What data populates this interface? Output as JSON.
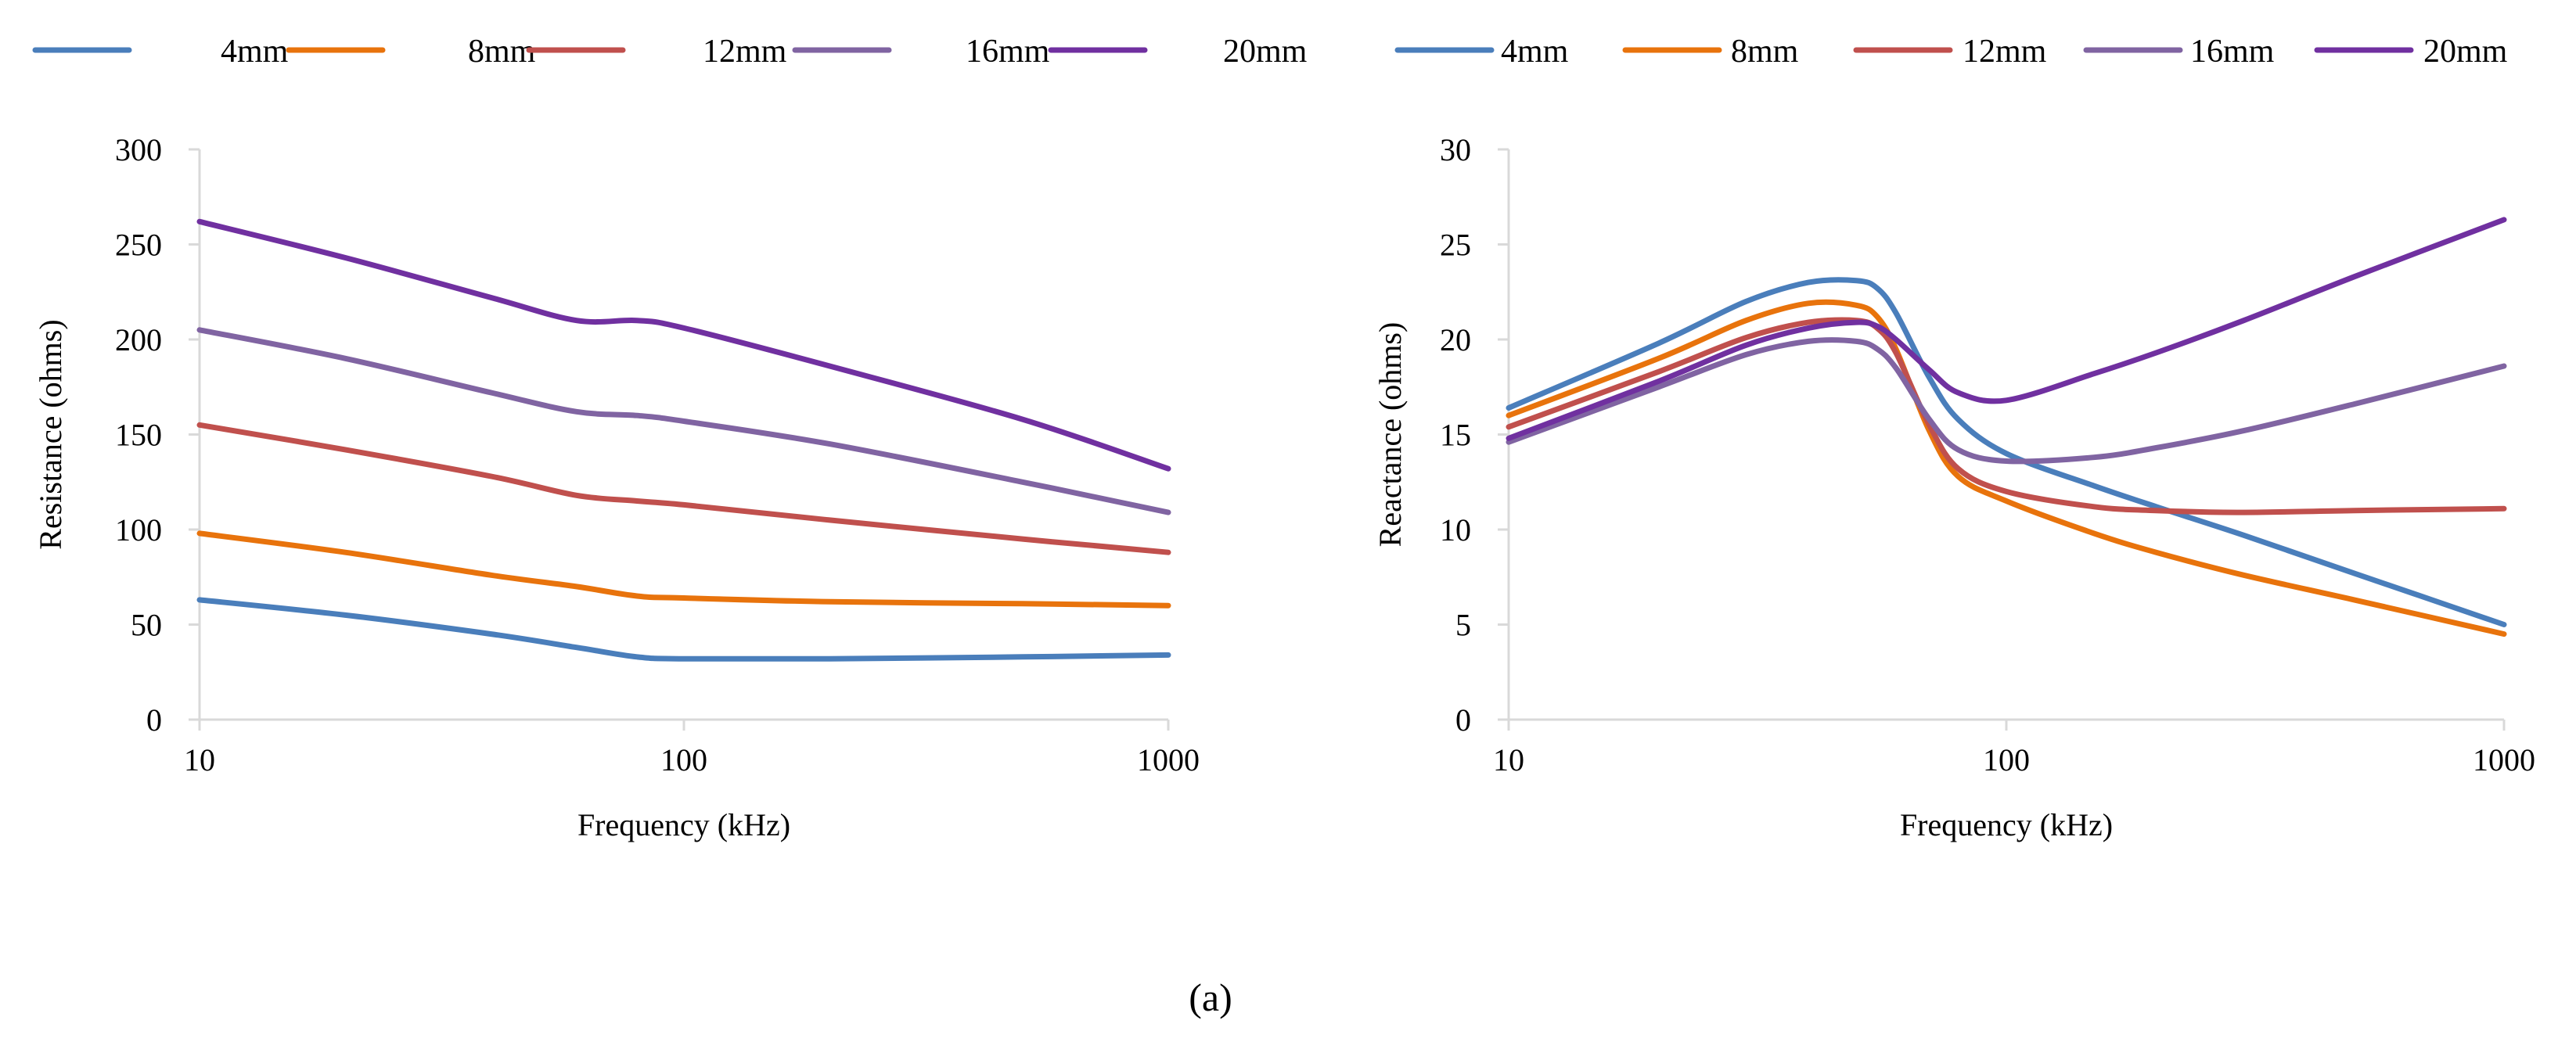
{
  "caption": "(a)",
  "chart_data": [
    {
      "type": "line",
      "xscale": "log",
      "xlim": [
        10,
        1000
      ],
      "xticks": [
        10,
        100,
        1000
      ],
      "xlabel": "Frequency (kHz)",
      "ylabel": "Resistance (ohms)",
      "ylim": [
        0,
        300
      ],
      "yticks": [
        0,
        50,
        100,
        150,
        200,
        250,
        300
      ],
      "grid": false,
      "legend_position": "top",
      "series": [
        {
          "name": "4mm",
          "color": "#4a7ebb",
          "x": [
            10,
            20,
            40,
            60,
            80,
            100,
            200,
            500,
            1000
          ],
          "y": [
            63,
            55,
            45,
            38,
            33,
            32,
            32,
            33,
            34
          ]
        },
        {
          "name": "8mm",
          "color": "#e8730c",
          "x": [
            10,
            20,
            40,
            60,
            80,
            100,
            200,
            500,
            1000
          ],
          "y": [
            98,
            88,
            76,
            70,
            65,
            64,
            62,
            61,
            60
          ]
        },
        {
          "name": "12mm",
          "color": "#c0504d",
          "x": [
            10,
            20,
            40,
            60,
            80,
            100,
            200,
            500,
            1000
          ],
          "y": [
            155,
            142,
            128,
            118,
            115,
            113,
            105,
            95,
            88
          ]
        },
        {
          "name": "16mm",
          "color": "#8064a2",
          "x": [
            10,
            20,
            40,
            60,
            80,
            100,
            200,
            500,
            1000
          ],
          "y": [
            205,
            190,
            172,
            162,
            160,
            157,
            145,
            125,
            109
          ]
        },
        {
          "name": "20mm",
          "color": "#7030a0",
          "x": [
            10,
            20,
            40,
            60,
            80,
            100,
            200,
            500,
            1000
          ],
          "y": [
            262,
            243,
            222,
            210,
            210,
            206,
            186,
            158,
            132
          ]
        }
      ]
    },
    {
      "type": "line",
      "xscale": "log",
      "xlim": [
        10,
        1000
      ],
      "xticks": [
        10,
        100,
        1000
      ],
      "xlabel": "Frequency (kHz)",
      "ylabel": "Reactance (ohms)",
      "ylim": [
        0,
        30
      ],
      "yticks": [
        0,
        5,
        10,
        15,
        20,
        25,
        30
      ],
      "grid": false,
      "legend_position": "top",
      "series": [
        {
          "name": "4mm",
          "color": "#4a7ebb",
          "x": [
            10,
            20,
            30,
            40,
            50,
            55,
            60,
            70,
            80,
            100,
            150,
            200,
            300,
            500,
            1000
          ],
          "y": [
            16.4,
            19.8,
            22.0,
            23.0,
            23.1,
            22.7,
            21.4,
            18.0,
            15.8,
            14.0,
            12.3,
            11.2,
            9.7,
            7.7,
            5.0
          ]
        },
        {
          "name": "8mm",
          "color": "#e8730c",
          "x": [
            10,
            20,
            30,
            40,
            50,
            55,
            60,
            70,
            80,
            100,
            150,
            200,
            300,
            500,
            1000
          ],
          "y": [
            16.0,
            19.0,
            21.0,
            21.9,
            21.8,
            21.2,
            19.5,
            15.2,
            12.8,
            11.5,
            9.8,
            8.8,
            7.6,
            6.3,
            4.5
          ]
        },
        {
          "name": "12mm",
          "color": "#c0504d",
          "x": [
            10,
            20,
            30,
            40,
            50,
            55,
            60,
            70,
            80,
            100,
            150,
            200,
            300,
            500,
            1000
          ],
          "y": [
            15.4,
            18.3,
            20.1,
            20.9,
            21.0,
            20.6,
            19.3,
            15.5,
            13.2,
            12.0,
            11.2,
            11.0,
            10.9,
            11.0,
            11.1
          ]
        },
        {
          "name": "16mm",
          "color": "#8064a2",
          "x": [
            10,
            20,
            30,
            40,
            50,
            55,
            60,
            70,
            80,
            100,
            150,
            200,
            300,
            500,
            1000
          ],
          "y": [
            14.6,
            17.5,
            19.2,
            19.9,
            19.9,
            19.5,
            18.5,
            15.8,
            14.2,
            13.6,
            13.8,
            14.3,
            15.2,
            16.6,
            18.6
          ]
        },
        {
          "name": "20mm",
          "color": "#7030a0",
          "x": [
            10,
            20,
            30,
            40,
            50,
            55,
            60,
            70,
            80,
            100,
            150,
            200,
            300,
            500,
            1000
          ],
          "y": [
            14.8,
            17.8,
            19.7,
            20.6,
            20.9,
            20.7,
            20.0,
            18.4,
            17.2,
            16.8,
            18.2,
            19.3,
            21.0,
            23.3,
            26.3
          ]
        }
      ]
    }
  ]
}
